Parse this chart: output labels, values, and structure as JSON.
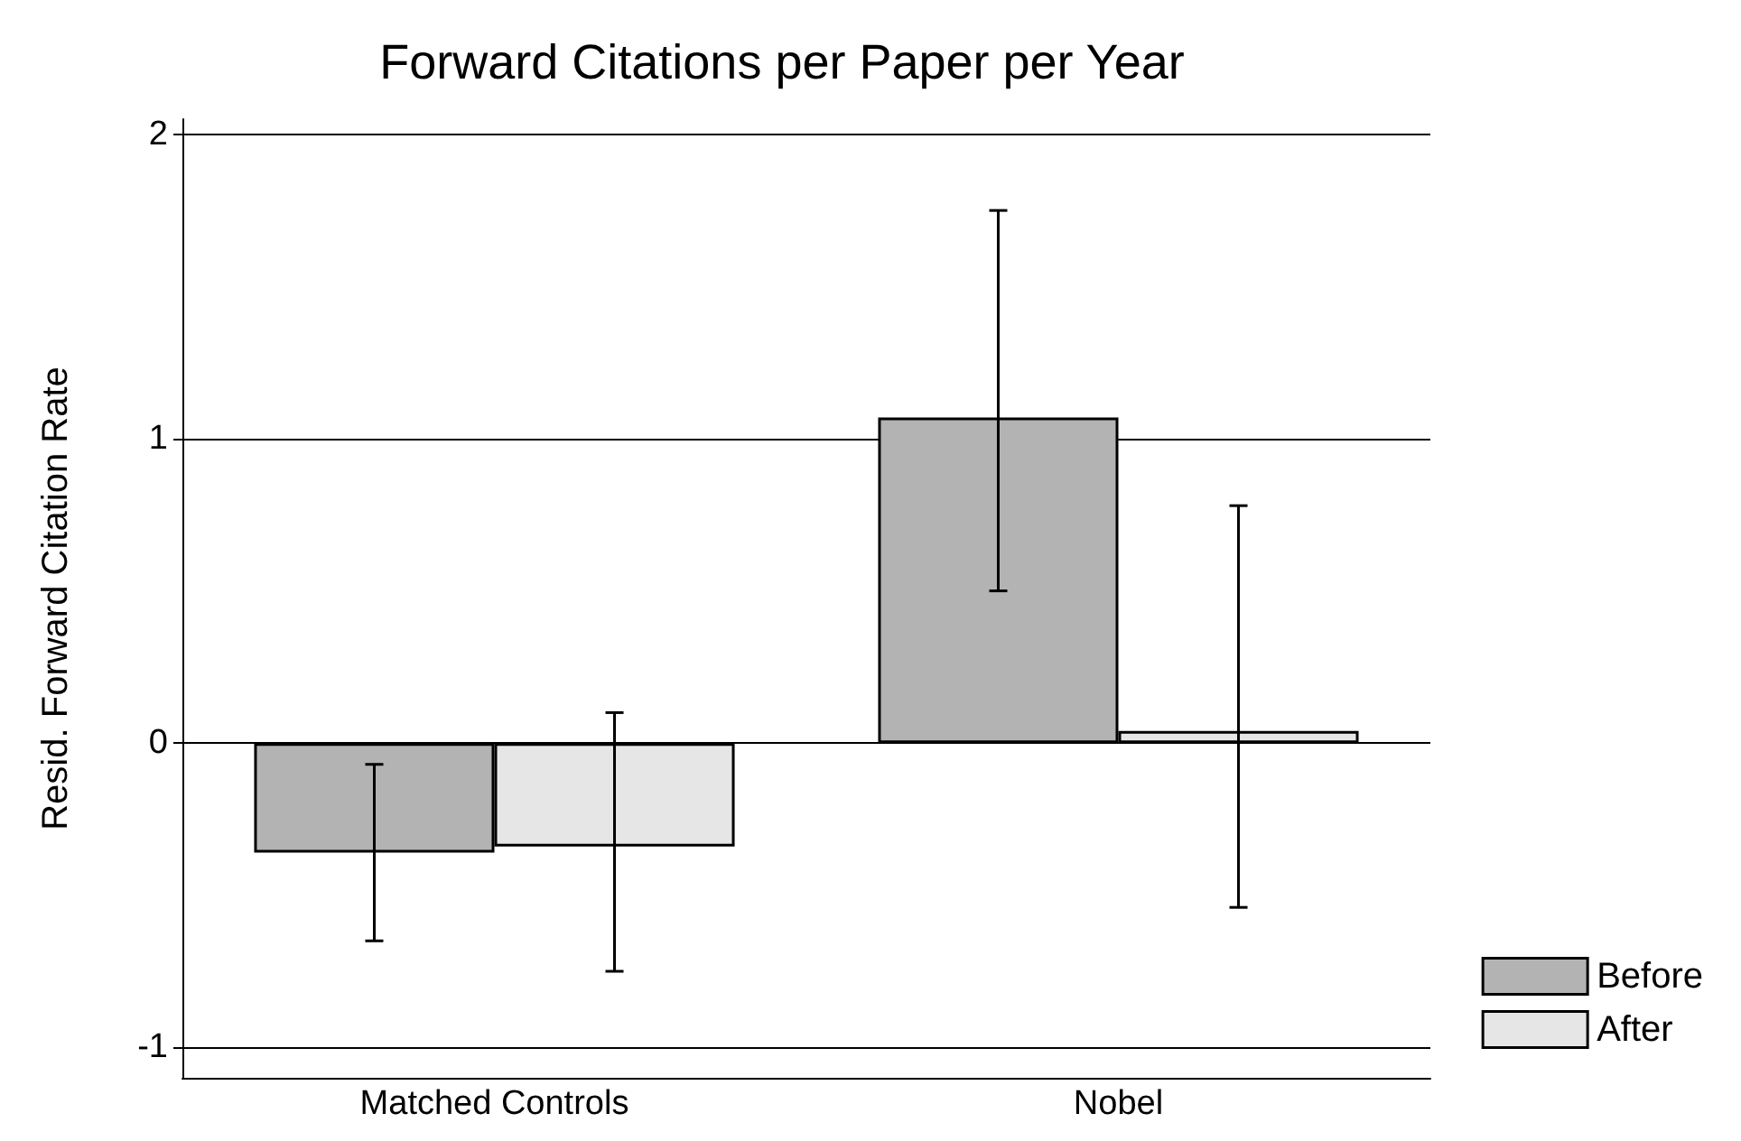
{
  "chart_data": {
    "type": "bar",
    "title": "Forward Citations per Paper per Year",
    "ylabel": "Resid. Forward Citation Rate",
    "categories": [
      "Matched Controls",
      "Nobel"
    ],
    "series": [
      {
        "name": "Before",
        "color": "#b3b3b3",
        "values": [
          -0.36,
          1.07
        ],
        "errors": [
          [
            -0.65,
            -0.07
          ],
          [
            0.5,
            1.75
          ]
        ]
      },
      {
        "name": "After",
        "color": "#e6e6e6",
        "values": [
          -0.34,
          0.04
        ],
        "errors": [
          [
            -0.75,
            0.1
          ],
          [
            -0.54,
            0.78
          ]
        ]
      }
    ],
    "ylim": [
      -1.1,
      2.05
    ],
    "yticks": [
      -1,
      0,
      1,
      2
    ],
    "grid": "y",
    "legend": "bottom right"
  }
}
